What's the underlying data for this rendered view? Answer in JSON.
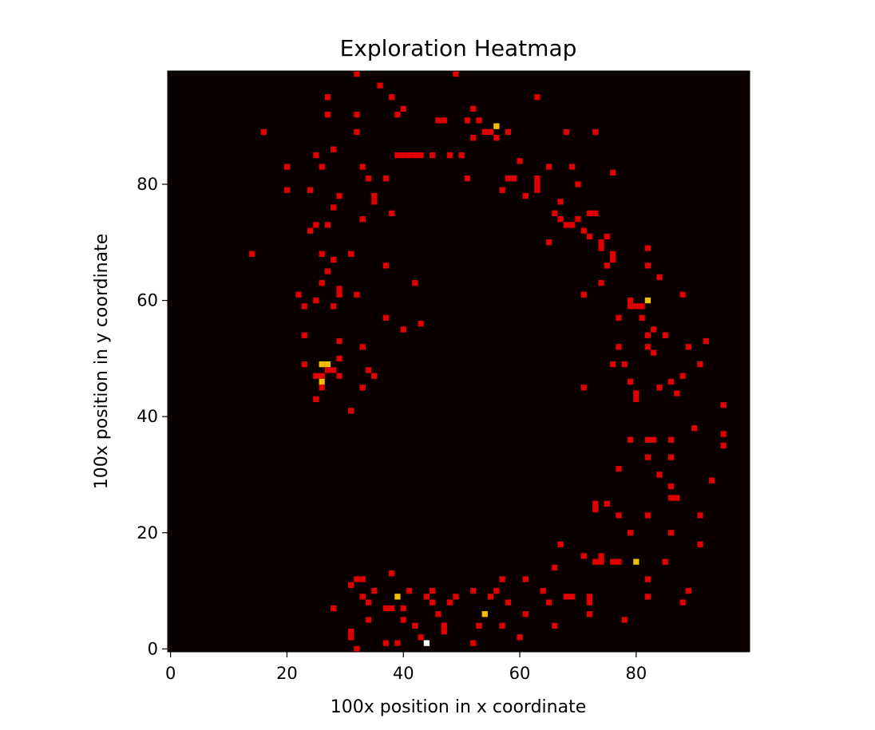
{
  "chart_data": {
    "type": "heatmap",
    "title": "Exploration Heatmap",
    "xlabel": "100x position in x coordinate",
    "ylabel": "100x position in y coordinate",
    "xlim": [
      -0.5,
      99.5
    ],
    "ylim": [
      -0.5,
      99.5
    ],
    "xticks": [
      0,
      20,
      40,
      60,
      80
    ],
    "yticks": [
      0,
      20,
      40,
      60,
      80
    ],
    "xtick_labels": [
      "0",
      "20",
      "40",
      "60",
      "80"
    ],
    "ytick_labels": [
      "0",
      "20",
      "40",
      "60",
      "80"
    ],
    "colormap": "hot",
    "background_color": "#0a0000",
    "level_colors": {
      "1": "#e00000",
      "2": "#f0c000",
      "3": "#ffffff"
    },
    "cells": [
      [
        14,
        68,
        1
      ],
      [
        16,
        89,
        1
      ],
      [
        20,
        83,
        1
      ],
      [
        20,
        79,
        1
      ],
      [
        22,
        61,
        1
      ],
      [
        23,
        59,
        1
      ],
      [
        23,
        54,
        1
      ],
      [
        23,
        49,
        1
      ],
      [
        24,
        79,
        1
      ],
      [
        24,
        72,
        1
      ],
      [
        25,
        85,
        1
      ],
      [
        25,
        73,
        1
      ],
      [
        25,
        60,
        1
      ],
      [
        25,
        47,
        1
      ],
      [
        25,
        43,
        1
      ],
      [
        26,
        83,
        1
      ],
      [
        26,
        68,
        1
      ],
      [
        26,
        63,
        1
      ],
      [
        26,
        47,
        1
      ],
      [
        26,
        45,
        1
      ],
      [
        26,
        49,
        2
      ],
      [
        26,
        46,
        2
      ],
      [
        27,
        49,
        2
      ],
      [
        27,
        95,
        1
      ],
      [
        27,
        92,
        1
      ],
      [
        27,
        73,
        1
      ],
      [
        27,
        65,
        1
      ],
      [
        27,
        48,
        1
      ],
      [
        28,
        86,
        1
      ],
      [
        28,
        76,
        1
      ],
      [
        28,
        67,
        1
      ],
      [
        28,
        59,
        1
      ],
      [
        28,
        48,
        1
      ],
      [
        29,
        78,
        1
      ],
      [
        29,
        62,
        1
      ],
      [
        29,
        61,
        1
      ],
      [
        29,
        53,
        1
      ],
      [
        29,
        50,
        1
      ],
      [
        29,
        47,
        1
      ],
      [
        31,
        68,
        1
      ],
      [
        31,
        41,
        1
      ],
      [
        32,
        99,
        1
      ],
      [
        32,
        92,
        1
      ],
      [
        32,
        89,
        1
      ],
      [
        32,
        61,
        1
      ],
      [
        33,
        83,
        1
      ],
      [
        33,
        74,
        1
      ],
      [
        33,
        52,
        1
      ],
      [
        33,
        45,
        1
      ],
      [
        34,
        81,
        1
      ],
      [
        34,
        48,
        1
      ],
      [
        35,
        78,
        1
      ],
      [
        35,
        77,
        1
      ],
      [
        35,
        47,
        1
      ],
      [
        36,
        97,
        1
      ],
      [
        37,
        81,
        1
      ],
      [
        37,
        66,
        1
      ],
      [
        37,
        57,
        1
      ],
      [
        38,
        95,
        1
      ],
      [
        38,
        75,
        1
      ],
      [
        39,
        92,
        1
      ],
      [
        39,
        85,
        1
      ],
      [
        40,
        93,
        1
      ],
      [
        40,
        85,
        1
      ],
      [
        40,
        55,
        1
      ],
      [
        41,
        85,
        1
      ],
      [
        42,
        85,
        1
      ],
      [
        42,
        63,
        1
      ],
      [
        43,
        85,
        1
      ],
      [
        43,
        56,
        1
      ],
      [
        45,
        85,
        1
      ],
      [
        46,
        91,
        1
      ],
      [
        47,
        91,
        1
      ],
      [
        48,
        85,
        1
      ],
      [
        49,
        99,
        1
      ],
      [
        50,
        85,
        1
      ],
      [
        51,
        91,
        1
      ],
      [
        51,
        81,
        1
      ],
      [
        52,
        93,
        1
      ],
      [
        52,
        88,
        1
      ],
      [
        53,
        91,
        1
      ],
      [
        54,
        89,
        1
      ],
      [
        55,
        89,
        1
      ],
      [
        56,
        90,
        2
      ],
      [
        56,
        88,
        1
      ],
      [
        57,
        79,
        1
      ],
      [
        58,
        89,
        1
      ],
      [
        58,
        81,
        1
      ],
      [
        59,
        81,
        1
      ],
      [
        60,
        84,
        1
      ],
      [
        61,
        78,
        1
      ],
      [
        63,
        95,
        1
      ],
      [
        63,
        81,
        1
      ],
      [
        63,
        80,
        1
      ],
      [
        63,
        79,
        1
      ],
      [
        65,
        83,
        1
      ],
      [
        65,
        70,
        1
      ],
      [
        66,
        75,
        1
      ],
      [
        67,
        77,
        1
      ],
      [
        67,
        74,
        1
      ],
      [
        68,
        89,
        1
      ],
      [
        68,
        73,
        1
      ],
      [
        69,
        83,
        1
      ],
      [
        69,
        73,
        1
      ],
      [
        70,
        80,
        1
      ],
      [
        70,
        74,
        1
      ],
      [
        71,
        72,
        1
      ],
      [
        71,
        61,
        1
      ],
      [
        72,
        75,
        1
      ],
      [
        72,
        71,
        1
      ],
      [
        73,
        75,
        1
      ],
      [
        73,
        89,
        1
      ],
      [
        74,
        70,
        1
      ],
      [
        74,
        69,
        1
      ],
      [
        74,
        63,
        1
      ],
      [
        75,
        71,
        1
      ],
      [
        75,
        66,
        1
      ],
      [
        76,
        82,
        1
      ],
      [
        76,
        68,
        1
      ],
      [
        76,
        67,
        1
      ],
      [
        76,
        49,
        1
      ],
      [
        77,
        57,
        1
      ],
      [
        77,
        52,
        1
      ],
      [
        78,
        49,
        1
      ],
      [
        79,
        60,
        1
      ],
      [
        79,
        59,
        1
      ],
      [
        79,
        46,
        1
      ],
      [
        80,
        59,
        1
      ],
      [
        80,
        44,
        1
      ],
      [
        80,
        43,
        1
      ],
      [
        81,
        59,
        1
      ],
      [
        81,
        57,
        1
      ],
      [
        82,
        60,
        2
      ],
      [
        82,
        69,
        1
      ],
      [
        82,
        66,
        1
      ],
      [
        82,
        54,
        1
      ],
      [
        82,
        52,
        1
      ],
      [
        83,
        55,
        1
      ],
      [
        83,
        51,
        1
      ],
      [
        84,
        64,
        1
      ],
      [
        84,
        45,
        1
      ],
      [
        85,
        54,
        1
      ],
      [
        86,
        46,
        1
      ],
      [
        87,
        44,
        1
      ],
      [
        88,
        61,
        1
      ],
      [
        88,
        47,
        1
      ],
      [
        89,
        52,
        1
      ],
      [
        90,
        38,
        1
      ],
      [
        91,
        49,
        1
      ],
      [
        92,
        53,
        1
      ],
      [
        93,
        29,
        1
      ],
      [
        95,
        42,
        1
      ],
      [
        95,
        37,
        1
      ],
      [
        95,
        35,
        1
      ],
      [
        71,
        45,
        1
      ],
      [
        73,
        25,
        1
      ],
      [
        73,
        24,
        1
      ],
      [
        75,
        25,
        1
      ],
      [
        77,
        31,
        1
      ],
      [
        77,
        23,
        1
      ],
      [
        77,
        15,
        1
      ],
      [
        78,
        5,
        1
      ],
      [
        79,
        36,
        1
      ],
      [
        79,
        20,
        1
      ],
      [
        80,
        15,
        2
      ],
      [
        82,
        36,
        1
      ],
      [
        82,
        33,
        1
      ],
      [
        82,
        23,
        1
      ],
      [
        82,
        12,
        1
      ],
      [
        82,
        9,
        1
      ],
      [
        83,
        36,
        1
      ],
      [
        84,
        30,
        1
      ],
      [
        85,
        15,
        1
      ],
      [
        86,
        36,
        1
      ],
      [
        86,
        33,
        1
      ],
      [
        86,
        28,
        1
      ],
      [
        86,
        26,
        1
      ],
      [
        86,
        20,
        1
      ],
      [
        87,
        26,
        1
      ],
      [
        88,
        8,
        1
      ],
      [
        89,
        10,
        1
      ],
      [
        91,
        23,
        1
      ],
      [
        91,
        18,
        1
      ],
      [
        67,
        18,
        1
      ],
      [
        68,
        9,
        1
      ],
      [
        69,
        9,
        1
      ],
      [
        71,
        16,
        1
      ],
      [
        72,
        9,
        1
      ],
      [
        72,
        8,
        1
      ],
      [
        72,
        6,
        1
      ],
      [
        73,
        15,
        1
      ],
      [
        74,
        16,
        1
      ],
      [
        74,
        15,
        1
      ],
      [
        76,
        15,
        1
      ],
      [
        64,
        10,
        1
      ],
      [
        65,
        8,
        1
      ],
      [
        66,
        4,
        1
      ],
      [
        66,
        14,
        1
      ],
      [
        61,
        12,
        1
      ],
      [
        61,
        6,
        1
      ],
      [
        60,
        2,
        1
      ],
      [
        58,
        8,
        1
      ],
      [
        57,
        12,
        1
      ],
      [
        57,
        4,
        1
      ],
      [
        56,
        10,
        1
      ],
      [
        55,
        9,
        1
      ],
      [
        54,
        6,
        2
      ],
      [
        53,
        4,
        1
      ],
      [
        52,
        10,
        1
      ],
      [
        52,
        1,
        1
      ],
      [
        49,
        9,
        1
      ],
      [
        48,
        8,
        1
      ],
      [
        47,
        4,
        1
      ],
      [
        47,
        3,
        1
      ],
      [
        46,
        6,
        1
      ],
      [
        45,
        10,
        1
      ],
      [
        45,
        8,
        1
      ],
      [
        44,
        9,
        1
      ],
      [
        44,
        1,
        3
      ],
      [
        43,
        2,
        1
      ],
      [
        42,
        4,
        1
      ],
      [
        41,
        10,
        1
      ],
      [
        40,
        7,
        1
      ],
      [
        40,
        5,
        1
      ],
      [
        39,
        9,
        2
      ],
      [
        39,
        1,
        1
      ],
      [
        38,
        13,
        1
      ],
      [
        38,
        7,
        1
      ],
      [
        37,
        7,
        1
      ],
      [
        37,
        1,
        1
      ],
      [
        35,
        10,
        1
      ],
      [
        34,
        5,
        1
      ],
      [
        34,
        8,
        1
      ],
      [
        33,
        12,
        1
      ],
      [
        33,
        9,
        1
      ],
      [
        32,
        12,
        1
      ],
      [
        32,
        0,
        1
      ],
      [
        31,
        3,
        1
      ],
      [
        31,
        2,
        1
      ],
      [
        31,
        11,
        1
      ],
      [
        28,
        7,
        1
      ]
    ]
  }
}
